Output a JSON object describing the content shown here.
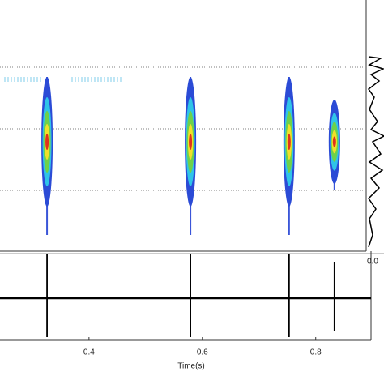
{
  "chart_data": {
    "type": "spectrogram",
    "xlabel": "Time(s)",
    "xlim": [
      0.243,
      0.889
    ],
    "xticks": [
      0.4,
      0.6,
      0.8
    ],
    "events": [
      0.326,
      0.579,
      0.753,
      0.833
    ],
    "spectrum_xticks": [
      {
        "value": 0,
        "label": "0.0"
      }
    ]
  }
}
